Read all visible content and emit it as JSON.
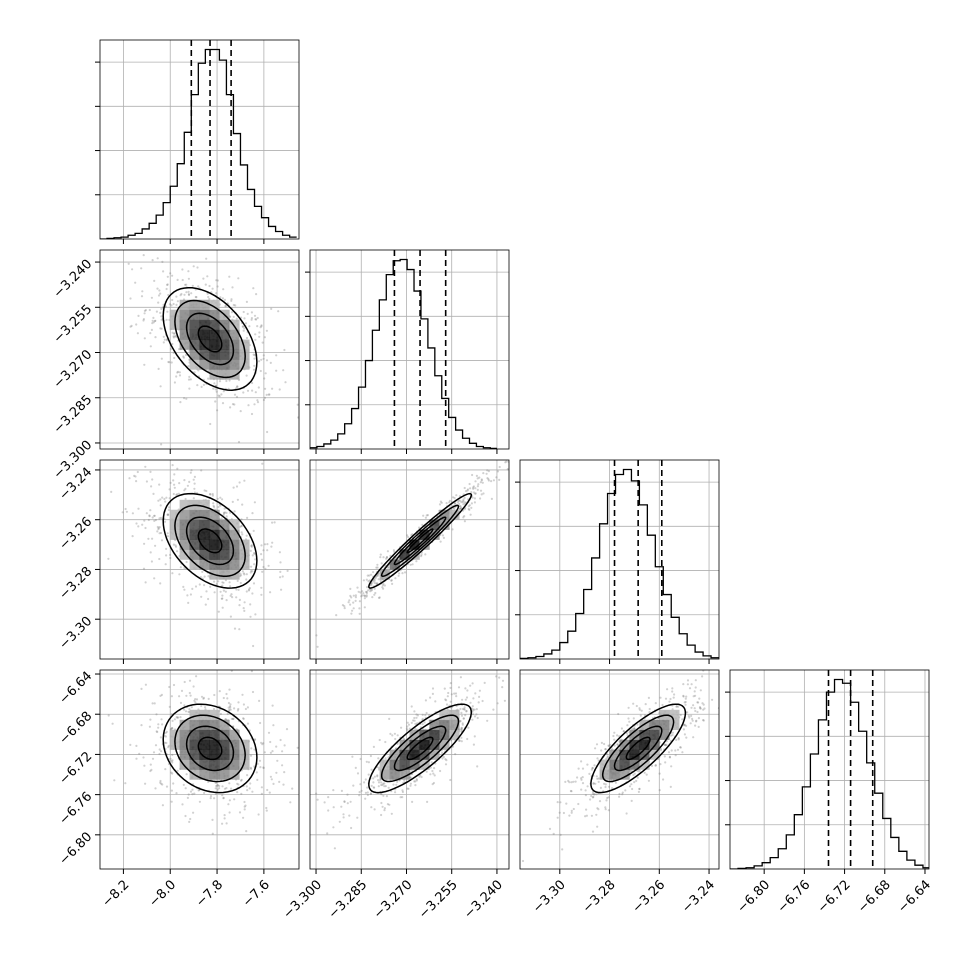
{
  "chart_data": {
    "type": "corner",
    "description_levels": "1D marginal histograms on the diagonal with dashed quantile lines; 2D density plots (gray scatter, shaded bins, contours) below the diagonal",
    "grid": true,
    "parameters": [
      {
        "index": 0,
        "range": [
          -8.3,
          -7.45
        ],
        "tick_values": [
          -8.2,
          -8.0,
          -7.8,
          -7.6
        ],
        "tick_labels": [
          "−8.2",
          "−8.0",
          "−7.8",
          "−7.6"
        ],
        "center": -7.83,
        "spread": 0.1,
        "quantiles": [
          -7.91,
          -7.83,
          -7.74
        ],
        "histogram": {
          "edges": [
            -8.3,
            -8.27,
            -8.24,
            -8.21,
            -8.18,
            -8.15,
            -8.12,
            -8.09,
            -8.06,
            -8.03,
            -8.0,
            -7.97,
            -7.94,
            -7.91,
            -7.88,
            -7.85,
            -7.82,
            -7.79,
            -7.76,
            -7.73,
            -7.7,
            -7.67,
            -7.64,
            -7.61,
            -7.58,
            -7.55,
            -7.52,
            -7.49,
            -7.46
          ],
          "counts": [
            0,
            1,
            2,
            3,
            6,
            9,
            16,
            25,
            38,
            58,
            84,
            120,
            170,
            230,
            280,
            302,
            302,
            285,
            230,
            168,
            118,
            79,
            52,
            34,
            20,
            12,
            6,
            3
          ]
        }
      },
      {
        "index": 1,
        "range": [
          -3.302,
          -3.236
        ],
        "tick_values": [
          -3.3,
          -3.285,
          -3.27,
          -3.255,
          -3.24
        ],
        "tick_labels": [
          "−3.300",
          "−3.285",
          "−3.270",
          "−3.255",
          "−3.240"
        ],
        "center": -3.2655,
        "spread": 0.0085,
        "quantiles": [
          -3.274,
          -3.2655,
          -3.257
        ],
        "histogram": {
          "edges": [
            -3.302,
            -3.2997,
            -3.2974,
            -3.2951,
            -3.2928,
            -3.2905,
            -3.2882,
            -3.2859,
            -3.2836,
            -3.2813,
            -3.279,
            -3.2767,
            -3.2744,
            -3.2721,
            -3.2698,
            -3.2675,
            -3.2652,
            -3.2629,
            -3.2606,
            -3.2583,
            -3.256,
            -3.2537,
            -3.2514,
            -3.2491,
            -3.2468,
            -3.2445,
            -3.2422,
            -3.24
          ],
          "counts": [
            2,
            4,
            8,
            14,
            24,
            40,
            64,
            98,
            140,
            188,
            236,
            276,
            298,
            300,
            284,
            250,
            206,
            160,
            116,
            80,
            50,
            30,
            17,
            9,
            4,
            2,
            1
          ]
        }
      },
      {
        "index": 2,
        "range": [
          -3.316,
          -3.236
        ],
        "tick_values": [
          -3.3,
          -3.28,
          -3.26,
          -3.24
        ],
        "tick_labels": [
          "−3.30",
          "−3.28",
          "−3.26",
          "−3.24"
        ],
        "center": -3.2685,
        "spread": 0.0095,
        "quantiles": [
          -3.278,
          -3.2685,
          -3.259
        ],
        "histogram": {
          "edges": [
            -3.316,
            -3.3128,
            -3.3096,
            -3.3064,
            -3.3032,
            -3.3,
            -3.2968,
            -3.2936,
            -3.2904,
            -3.2872,
            -3.284,
            -3.2808,
            -3.2776,
            -3.2744,
            -3.2712,
            -3.268,
            -3.2648,
            -3.2616,
            -3.2584,
            -3.2552,
            -3.252,
            -3.2488,
            -3.2456,
            -3.2424,
            -3.2392,
            -3.236
          ],
          "counts": [
            1,
            2,
            4,
            8,
            14,
            26,
            44,
            72,
            110,
            160,
            214,
            262,
            292,
            300,
            282,
            244,
            196,
            146,
            102,
            66,
            40,
            22,
            11,
            5,
            2
          ]
        }
      },
      {
        "index": 3,
        "range": [
          -6.834,
          -6.636
        ],
        "tick_values": [
          -6.8,
          -6.76,
          -6.72,
          -6.68,
          -6.64
        ],
        "tick_labels": [
          "−6.80",
          "−6.76",
          "−6.72",
          "−6.68",
          "−6.64"
        ],
        "center": -6.714,
        "spread": 0.022,
        "quantiles": [
          -6.736,
          -6.714,
          -6.692
        ],
        "histogram": {
          "edges": [
            -6.834,
            -6.826,
            -6.818,
            -6.81,
            -6.802,
            -6.794,
            -6.786,
            -6.778,
            -6.77,
            -6.762,
            -6.754,
            -6.746,
            -6.738,
            -6.73,
            -6.722,
            -6.714,
            -6.706,
            -6.698,
            -6.69,
            -6.682,
            -6.674,
            -6.666,
            -6.658,
            -6.65,
            -6.642,
            -6.636
          ],
          "counts": [
            0,
            1,
            2,
            5,
            10,
            18,
            32,
            54,
            86,
            130,
            182,
            236,
            280,
            300,
            294,
            264,
            218,
            168,
            120,
            80,
            50,
            28,
            14,
            6,
            2
          ]
        }
      }
    ],
    "correlations": {
      "1-0": -0.45,
      "2-0": -0.42,
      "2-1": 0.97,
      "3-0": -0.2,
      "3-1": 0.82,
      "3-2": 0.8
    },
    "ytick_labels_rows": {
      "row1": [
        "−3.240",
        "−3.255",
        "−3.270",
        "−3.285",
        "−3.300"
      ],
      "row2": [
        "−3.24",
        "−3.26",
        "−3.28",
        "−3.30"
      ],
      "row3": [
        "−6.64",
        "−6.68",
        "−6.72",
        "−6.76",
        "−6.80"
      ]
    }
  }
}
